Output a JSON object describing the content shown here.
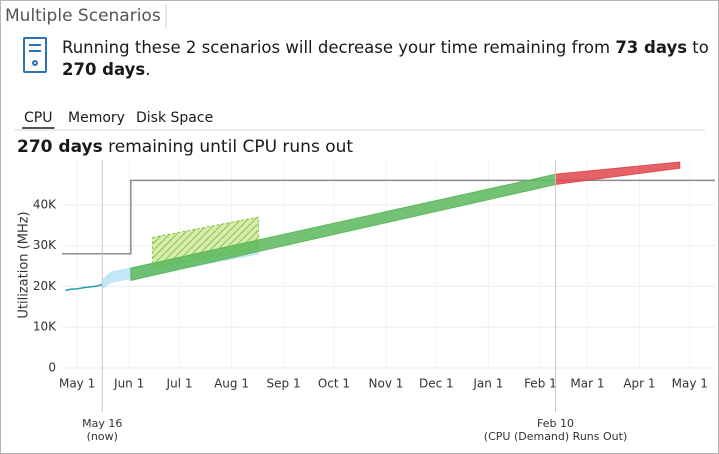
{
  "window_title": "Multiple Scenarios",
  "message": {
    "line1": [
      "Running these 2 scenarios will decrease your time remaining from ",
      "73 days",
      " to"
    ],
    "line2": [
      "270 days",
      "."
    ]
  },
  "tabs": [
    "CPU",
    "Memory",
    "Disk Space"
  ],
  "selected_tab": 0,
  "heading": [
    "270 days",
    " remaining until CPU runs out"
  ],
  "chart_data": {
    "type": "line",
    "y_label": "Utilization (MHz)",
    "grid": true,
    "xlim": [
      -9,
      380
    ],
    "xticks": [
      {
        "value": 0,
        "label": "May 1"
      },
      {
        "value": 31,
        "label": "Jun 1"
      },
      {
        "value": 61,
        "label": "Jul 1"
      },
      {
        "value": 92,
        "label": "Aug 1"
      },
      {
        "value": 123,
        "label": "Sep 1"
      },
      {
        "value": 153,
        "label": "Oct 1"
      },
      {
        "value": 184,
        "label": "Nov 1"
      },
      {
        "value": 214,
        "label": "Dec 1"
      },
      {
        "value": 245,
        "label": "Jan 1"
      },
      {
        "value": 276,
        "label": "Feb 1"
      },
      {
        "value": 304,
        "label": "Mar 1"
      },
      {
        "value": 335,
        "label": "Apr 1"
      },
      {
        "value": 365,
        "label": "May 1"
      }
    ],
    "ylim": [
      0,
      51000
    ],
    "yticks": [
      0,
      {
        "value": 10000,
        "label": "10K"
      },
      {
        "value": 20000,
        "label": "20K"
      },
      {
        "value": 30000,
        "label": "30K"
      },
      {
        "value": 40000,
        "label": "40K"
      }
    ],
    "series": [
      {
        "style": "line",
        "color": "#8c8c8c",
        "x": [
          -9,
          32,
          32,
          380
        ],
        "values": [
          28000,
          28000,
          46000,
          46000
        ]
      },
      {
        "style": "band",
        "color": "#b9e3f5",
        "x": [
          15,
          20,
          108
        ],
        "lower": [
          19500,
          21000,
          28000
        ],
        "upper": [
          21500,
          23500,
          31000
        ]
      },
      {
        "style": "hatched-band",
        "color": "#8cc63f",
        "x": [
          45,
          108
        ],
        "lower": [
          24500,
          29500
        ],
        "upper": [
          32000,
          37000
        ]
      },
      {
        "style": "band",
        "color": "#5cb85c",
        "x": [
          32,
          285
        ],
        "lower": [
          21500,
          45000
        ],
        "upper": [
          24500,
          47500
        ]
      },
      {
        "style": "band",
        "color": "#e0474c",
        "x": [
          285,
          359
        ],
        "lower": [
          45000,
          49000
        ],
        "upper": [
          47500,
          50500
        ]
      },
      {
        "style": "line",
        "color": "#2a9bb3",
        "x": [
          -7,
          -4,
          0,
          4,
          8,
          12,
          15
        ],
        "values": [
          19000,
          19300,
          19400,
          19700,
          19900,
          20100,
          20500
        ]
      }
    ],
    "annotations": [
      {
        "x": 15,
        "label": "May 16",
        "sublabel": "(now)"
      },
      {
        "x": 285,
        "label": "Feb 10",
        "sublabel": "(CPU (Demand) Runs Out)"
      }
    ]
  }
}
